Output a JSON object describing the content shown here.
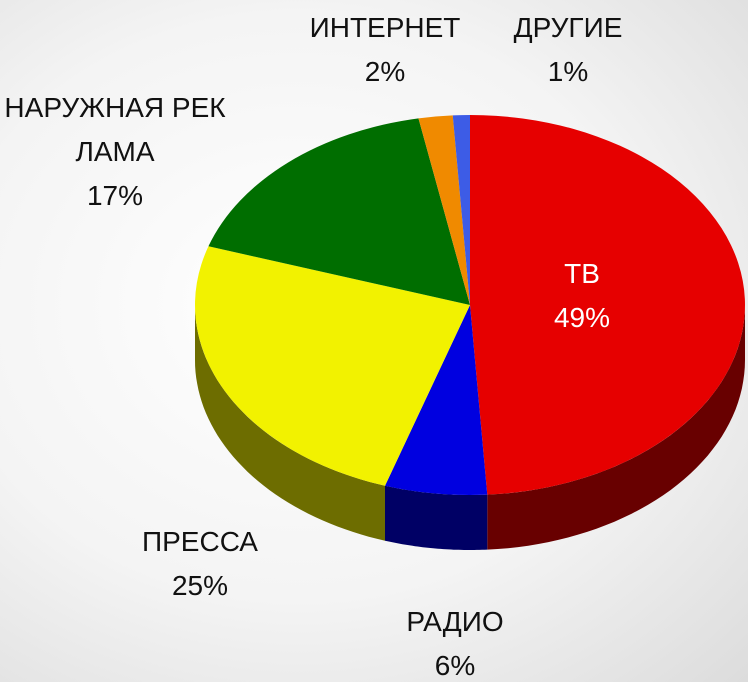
{
  "chart_data": {
    "type": "pie",
    "categories": [
      "ТВ",
      "РАДИО",
      "ПРЕССА",
      "НАРУЖНАЯ РЕКЛАМА",
      "ИНТЕРНЕТ",
      "ДРУГИЕ"
    ],
    "values": [
      49,
      6,
      25,
      17,
      2,
      1
    ],
    "value_labels": [
      "49%",
      "6%",
      "25%",
      "17%",
      "2%",
      "1%"
    ],
    "colors": [
      "#e60000",
      "#0000e0",
      "#f2f200",
      "#006e00",
      "#f08a00",
      "#3d5ce6"
    ],
    "three_d": true
  }
}
